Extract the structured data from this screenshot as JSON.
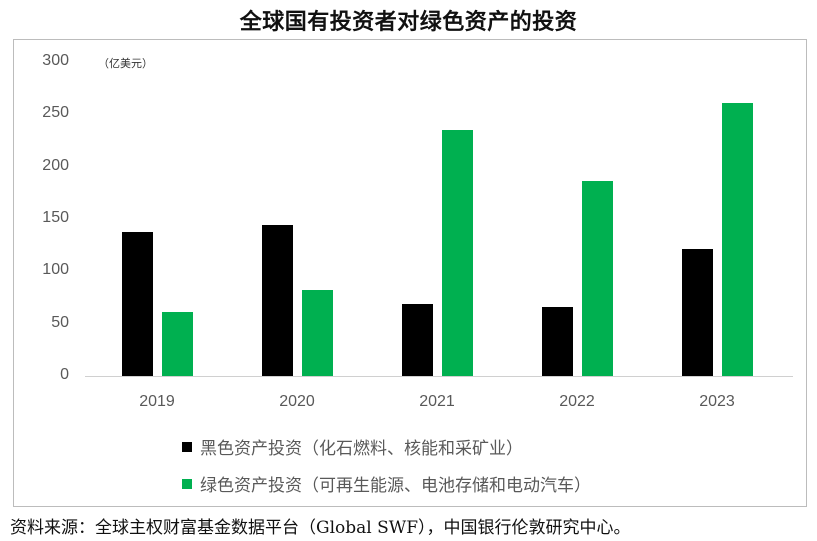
{
  "title": "全球国有投资者对绿色资产的投资",
  "source": "资料来源：全球主权财富基金数据平台（Global SWF），中国银行伦敦研究中心。",
  "colors": {
    "black_assets": "#000000",
    "green_assets": "#00b050"
  },
  "axis": {
    "y_unit": "（亿美元）",
    "y_ticks": [
      "300",
      "250",
      "200",
      "150",
      "100",
      "50",
      "0"
    ]
  },
  "legend": [
    {
      "label": "黑色资产投资（化石燃料、核能和采矿业）",
      "color": "#000000"
    },
    {
      "label": "绿色资产投资（可再生能源、电池存储和电动汽车）",
      "color": "#00b050"
    }
  ],
  "chart_data": {
    "type": "bar",
    "title": "全球国有投资者对绿色资产的投资",
    "categories": [
      "2019",
      "2020",
      "2021",
      "2022",
      "2023"
    ],
    "series": [
      {
        "name": "黑色资产投资（化石燃料、核能和采矿业）",
        "color": "#000000",
        "values": [
          138,
          144,
          69,
          66,
          121
        ]
      },
      {
        "name": "绿色资产投资（可再生能源、电池存储和电动汽车）",
        "color": "#00b050",
        "values": [
          61,
          82,
          235,
          186,
          261
        ]
      }
    ],
    "xlabel": "",
    "ylabel": "亿美元",
    "ylim": [
      0,
      300
    ],
    "yticks": [
      0,
      50,
      100,
      150,
      200,
      250,
      300
    ],
    "grid": false,
    "legend_position": "bottom"
  }
}
